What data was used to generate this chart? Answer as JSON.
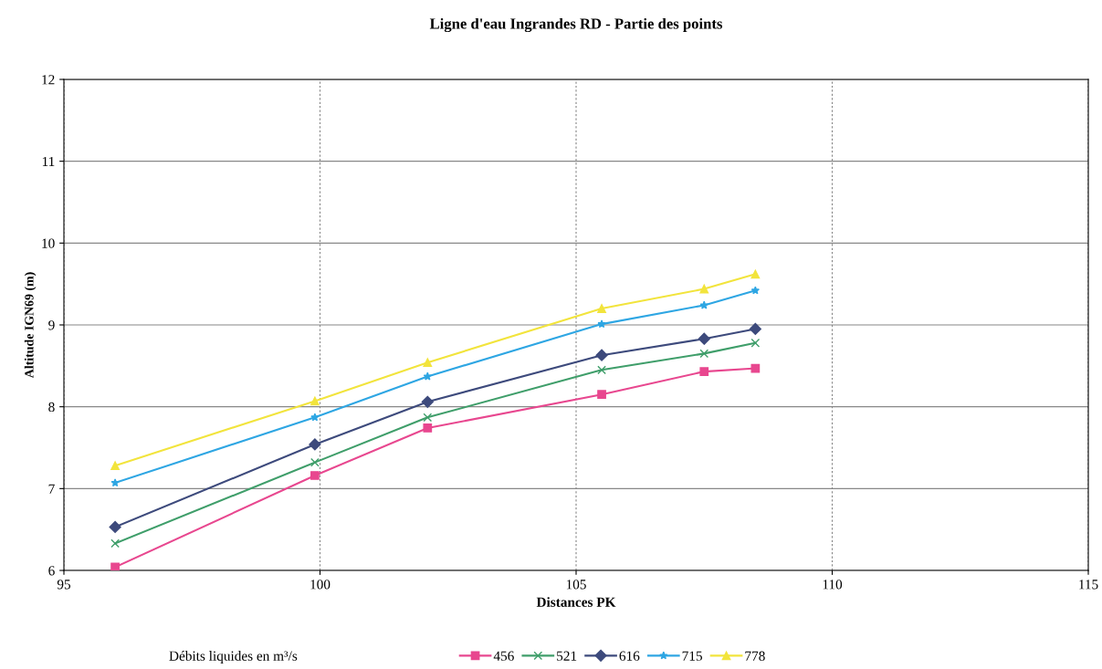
{
  "chart_data": {
    "type": "line",
    "title": "Ligne d'eau Ingrandes RD - Partie des points",
    "xlabel": "Distances PK",
    "ylabel": "Altitude IGN69 (m)",
    "legend_title": "Débits liquides en m³/s",
    "x": [
      96.0,
      99.9,
      102.1,
      105.5,
      107.5,
      108.5
    ],
    "series": [
      {
        "name": "456",
        "color": "#e8478f",
        "marker": "square",
        "values": [
          6.04,
          7.16,
          7.74,
          8.15,
          8.43,
          8.47
        ]
      },
      {
        "name": "521",
        "color": "#3f9e6a",
        "marker": "cross",
        "values": [
          6.33,
          7.32,
          7.87,
          8.45,
          8.65,
          8.78
        ]
      },
      {
        "name": "616",
        "color": "#3d4a7c",
        "marker": "diamond",
        "values": [
          6.53,
          7.54,
          8.06,
          8.63,
          8.83,
          8.95
        ]
      },
      {
        "name": "715",
        "color": "#2ea6e3",
        "marker": "star",
        "values": [
          7.07,
          7.87,
          8.37,
          9.01,
          9.24,
          9.42
        ]
      },
      {
        "name": "778",
        "color": "#f2e43c",
        "marker": "triangle",
        "values": [
          7.28,
          8.07,
          8.54,
          9.2,
          9.44,
          9.62
        ]
      }
    ],
    "xlim": [
      95,
      115
    ],
    "xticks": [
      95,
      100,
      105,
      110,
      115
    ],
    "ylim": [
      6,
      12
    ],
    "yticks": [
      6,
      7,
      8,
      9,
      10,
      11,
      12
    ],
    "grid": true,
    "legend": "bottom",
    "line_style": "solid"
  }
}
